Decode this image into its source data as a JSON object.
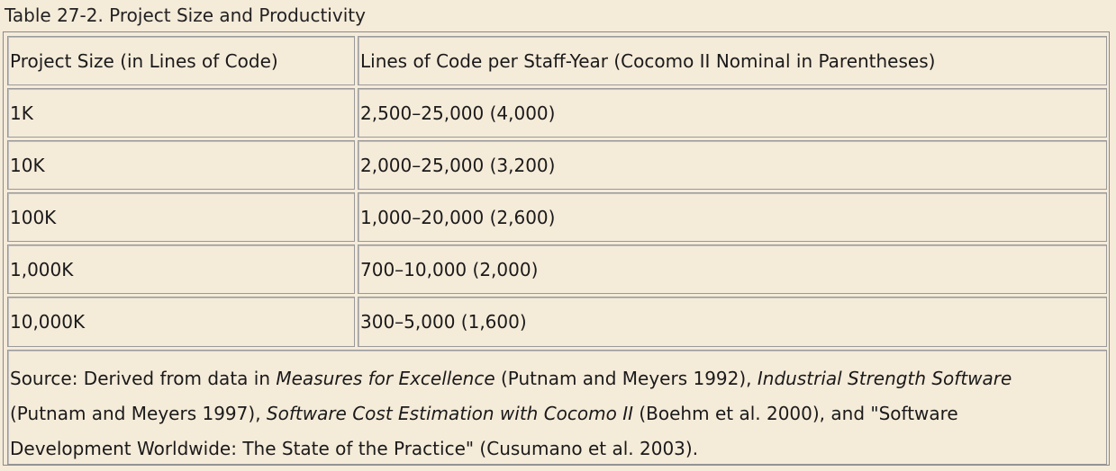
{
  "caption": "Table 27-2. Project Size and Productivity",
  "table": {
    "headers": [
      "Project Size (in Lines of Code)",
      "Lines of Code per Staff-Year (Cocomo II Nominal in Parentheses)"
    ],
    "rows": [
      {
        "size": "1K",
        "loc": "2,500–25,000 (4,000)"
      },
      {
        "size": "10K",
        "loc": "2,000–25,000 (3,200)"
      },
      {
        "size": "100K",
        "loc": "1,000–20,000 (2,600)"
      },
      {
        "size": "1,000K",
        "loc": "700–10,000 (2,000)"
      },
      {
        "size": "10,000K",
        "loc": "300–5,000 (1,600)"
      }
    ]
  },
  "source": {
    "prefix": "Source: Derived from data in ",
    "title1": "Measures for Excellence",
    "text1": " (Putnam and Meyers 1992), ",
    "title2": "Industrial Strength Software",
    "text2": "(Putnam and Meyers 1997), ",
    "title3": "Software Cost Estimation with Cocomo II",
    "text3": " (Boehm et al. 2000), and \"Software",
    "text4": "Development Worldwide: The State of the Practice\" (Cusumano et al. 2003)."
  }
}
